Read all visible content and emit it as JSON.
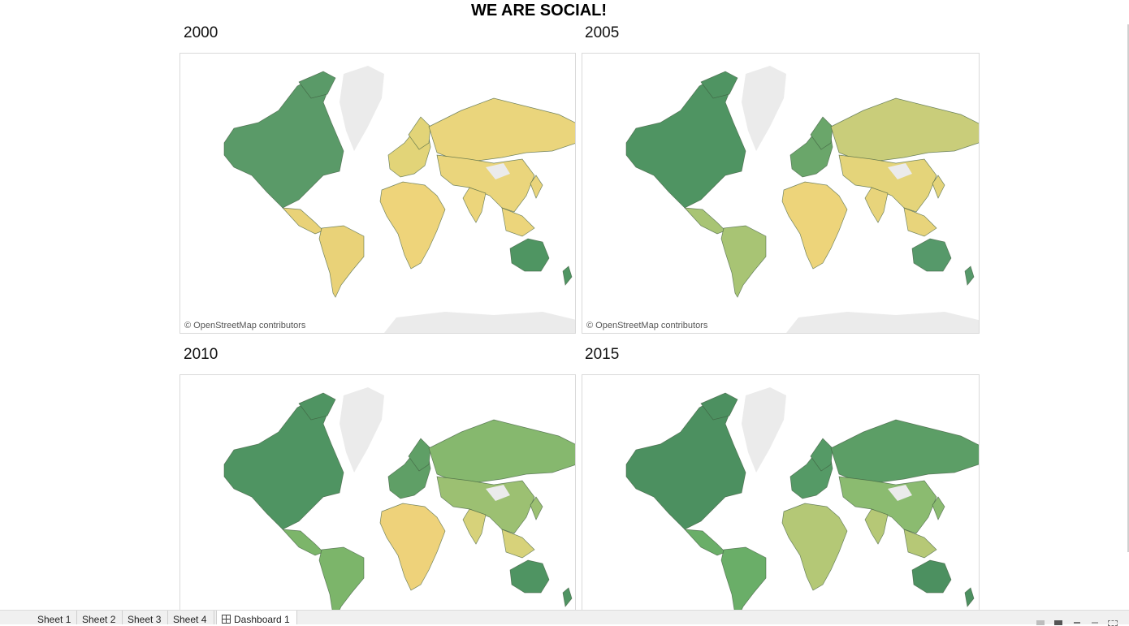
{
  "dashboard": {
    "title": "WE ARE SOCIAL!"
  },
  "panels": [
    {
      "year": "2000",
      "attribution": "© OpenStreetMap contributors",
      "colors": {
        "na": "#5a9a68",
        "sa": "#e9d278",
        "eu": "#e2d478",
        "af": "#eed47a",
        "ru": "#ead57c",
        "as": "#ead57c",
        "in": "#ecd57b",
        "au": "#4f9562",
        "gl": "#ebebeb"
      }
    },
    {
      "year": "2005",
      "attribution": "© OpenStreetMap contributors",
      "colors": {
        "na": "#4f9462",
        "sa": "#a8c474",
        "eu": "#6aa66a",
        "af": "#edd47a",
        "ru": "#c9cd7a",
        "as": "#e4d47a",
        "in": "#e8d47b",
        "au": "#56996a",
        "gl": "#ebebeb"
      }
    },
    {
      "year": "2010",
      "attribution": "",
      "colors": {
        "na": "#4f9462",
        "sa": "#7cb56a",
        "eu": "#5f9f66",
        "af": "#eed27a",
        "ru": "#86b86e",
        "as": "#9cc072",
        "in": "#d7d27a",
        "au": "#4f9462",
        "gl": "#ebebeb"
      }
    },
    {
      "year": "2015",
      "attribution": "",
      "colors": {
        "na": "#4c9060",
        "sa": "#6aae68",
        "eu": "#559a66",
        "af": "#b4c876",
        "ru": "#5c9e66",
        "as": "#8bbb70",
        "in": "#b6c876",
        "au": "#4c9060",
        "gl": "#ebebeb"
      }
    }
  ],
  "tabs": [
    {
      "label": "Sheet 1"
    },
    {
      "label": "Sheet 2"
    },
    {
      "label": "Sheet 3"
    },
    {
      "label": "Sheet 4"
    },
    {
      "label": "Dashboard 1"
    }
  ]
}
